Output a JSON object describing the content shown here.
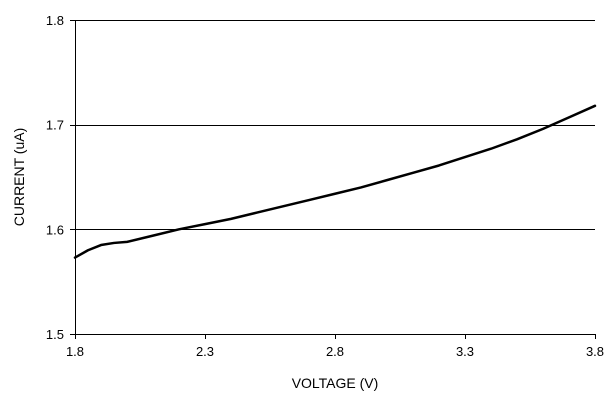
{
  "chart_data": {
    "type": "line",
    "title": "",
    "xlabel": "VOLTAGE (V)",
    "ylabel": "CURRENT (uA)",
    "xlim": [
      1.8,
      3.8
    ],
    "ylim": [
      1.5,
      1.8
    ],
    "x_ticks": [
      1.8,
      2.3,
      2.8,
      3.3,
      3.8
    ],
    "y_ticks": [
      1.5,
      1.6,
      1.7,
      1.8
    ],
    "x_tick_labels": [
      "1.8",
      "2.3",
      "2.8",
      "3.3",
      "3.8"
    ],
    "y_tick_labels": [
      "1.5",
      "1.6",
      "1.7",
      "1.8"
    ],
    "grid": "horizontal",
    "legend": "none",
    "colors": {
      "line": "#000000",
      "grid": "#000000",
      "axis": "#000000"
    },
    "series": [
      {
        "x": [
          1.8,
          1.85,
          1.9,
          1.95,
          2.0,
          2.1,
          2.2,
          2.3,
          2.4,
          2.5,
          2.6,
          2.7,
          2.8,
          2.9,
          3.0,
          3.1,
          3.2,
          3.3,
          3.4,
          3.5,
          3.6,
          3.7,
          3.8
        ],
        "y": [
          1.573,
          1.58,
          1.585,
          1.587,
          1.588,
          1.594,
          1.6,
          1.605,
          1.61,
          1.616,
          1.622,
          1.628,
          1.634,
          1.64,
          1.647,
          1.654,
          1.661,
          1.669,
          1.677,
          1.686,
          1.696,
          1.707,
          1.718
        ]
      }
    ]
  }
}
